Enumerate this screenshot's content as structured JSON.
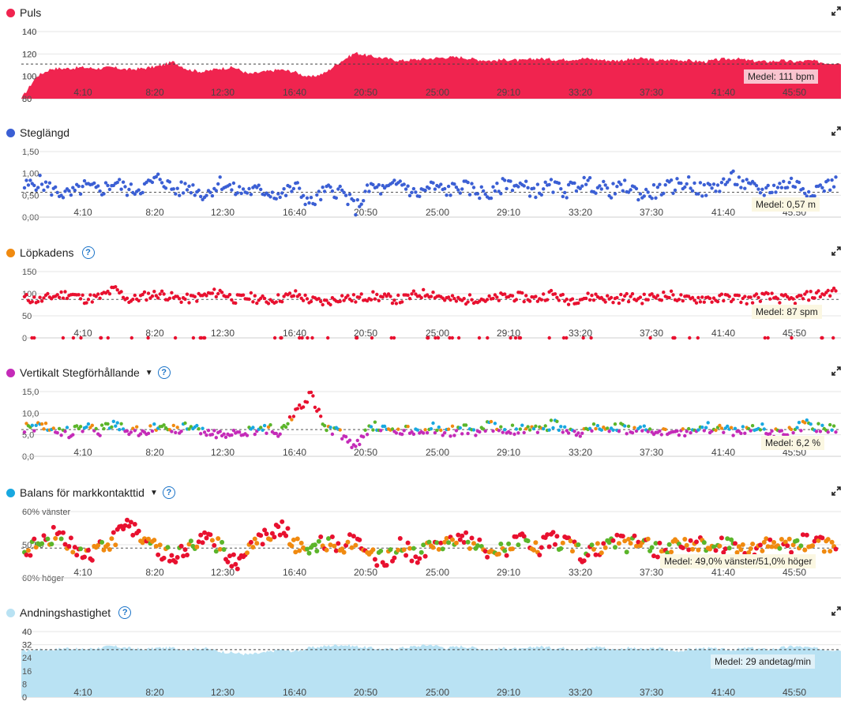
{
  "x_ticks": [
    "4:10",
    "8:20",
    "12:30",
    "16:40",
    "20:50",
    "25:00",
    "29:10",
    "33:20",
    "37:30",
    "41:40",
    "45:50"
  ],
  "colors": {
    "puls": "#f0244f",
    "steg": "#3b5fd4",
    "kadens": "#e8102f",
    "vert_blue": "#18a8e0",
    "vert_green": "#5bb52a",
    "vert_purple": "#c42bb8",
    "vert_orange": "#f08a10",
    "vert_red": "#e8102f",
    "balans_red": "#e8102f",
    "balans_orange": "#f08a10",
    "balans_green": "#5bb52a",
    "andning": "#b9e2f3",
    "help": "#1a73c8"
  },
  "panels": {
    "puls": {
      "title": "Puls",
      "medel": "Medel: 111 bpm",
      "y_ticks": [
        "140",
        "120",
        "100",
        "80"
      ],
      "icon": "expand-icon"
    },
    "steg": {
      "title": "Steglängd",
      "medel": "Medel: 0,57 m",
      "y_ticks": [
        "1,50",
        "1,00",
        "0,50",
        "0,00"
      ],
      "icon": "expand-icon"
    },
    "kadens": {
      "title": "Löpkadens",
      "medel": "Medel: 87 spm",
      "y_ticks": [
        "150",
        "100",
        "50",
        "0"
      ],
      "icon": "expand-icon"
    },
    "vert": {
      "title": "Vertikalt Stegförhållande",
      "medel": "Medel: 6,2 %",
      "y_ticks": [
        "15,0",
        "10,0",
        "5,0",
        "0,0"
      ],
      "icon": "expand-icon"
    },
    "balans": {
      "title": "Balans för markkontakttid",
      "medel": "Medel: 49,0% vänster/51,0% höger",
      "y_ticks": [
        "60% vänster",
        "50,50",
        "60% höger"
      ],
      "icon": "expand-icon"
    },
    "andning": {
      "title": "Andningshastighet",
      "medel": "Medel: 29 andetag/min",
      "y_ticks": [
        "40",
        "32",
        "24",
        "16",
        "8",
        "0"
      ],
      "icon": "expand-icon"
    }
  },
  "chart_data": [
    {
      "type": "area",
      "title": "Puls",
      "ylim": [
        80,
        140
      ],
      "mean": 111,
      "x_ticks": [
        "4:10",
        "8:20",
        "12:30",
        "16:40",
        "20:50",
        "25:00",
        "29:10",
        "33:20",
        "37:30",
        "41:40",
        "45:50"
      ],
      "series": [
        {
          "name": "Puls",
          "values": [
            80,
            100,
            107,
            107,
            108,
            107,
            108,
            106,
            107,
            109,
            113,
            106,
            104,
            107,
            108,
            102,
            104,
            106,
            104,
            99,
            103,
            113,
            121,
            118,
            116,
            114,
            115,
            116,
            117,
            117,
            115,
            114,
            115,
            114,
            116,
            115,
            115,
            116,
            115,
            114,
            115,
            116,
            114,
            115,
            114,
            113,
            115,
            116,
            114,
            113,
            114,
            113,
            114,
            112,
            112
          ]
        }
      ]
    },
    {
      "type": "scatter",
      "title": "Steglängd",
      "ylim": [
        0,
        1.5
      ],
      "mean": 0.57,
      "x_ticks": [
        "4:10",
        "8:20",
        "12:30",
        "16:40",
        "20:50",
        "25:00",
        "29:10",
        "33:20",
        "37:30",
        "41:40",
        "45:50"
      ],
      "series": [
        {
          "name": "Steglängd",
          "values": [
            0.7,
            0.8,
            0.6,
            0.5,
            0.7,
            0.6,
            0.8,
            0.6,
            0.7,
            0.9,
            0.6,
            0.7,
            0.5,
            0.8,
            0.6,
            0.6,
            0.6,
            0.5,
            0.7,
            0.3,
            0.6,
            0.6,
            0.2,
            0.7,
            0.6,
            0.8,
            0.5,
            0.7,
            0.6,
            0.7,
            0.6,
            0.5,
            0.8,
            0.7,
            0.6,
            0.7,
            0.6,
            0.8,
            0.7,
            0.6,
            0.7,
            0.5,
            0.6,
            0.7,
            0.8,
            0.6,
            0.7,
            0.9,
            0.7,
            0.6,
            0.7,
            0.8,
            0.6,
            0.7,
            0.8
          ]
        }
      ]
    },
    {
      "type": "scatter",
      "title": "Löpkadens",
      "ylim": [
        0,
        150
      ],
      "mean": 87,
      "x_ticks": [
        "4:10",
        "8:20",
        "12:30",
        "16:40",
        "20:50",
        "25:00",
        "29:10",
        "33:20",
        "37:30",
        "41:40",
        "45:50"
      ],
      "series": [
        {
          "name": "Löpkadens",
          "values": [
            90,
            85,
            95,
            100,
            88,
            92,
            110,
            85,
            95,
            100,
            90,
            88,
            96,
            104,
            87,
            92,
            84,
            90,
            98,
            85,
            80,
            92,
            88,
            95,
            90,
            86,
            98,
            102,
            88,
            84,
            90,
            86,
            95,
            92,
            88,
            100,
            85,
            90,
            94,
            86,
            92,
            88,
            95,
            96,
            85,
            90,
            88,
            92,
            86,
            94,
            90,
            85,
            95,
            100,
            108
          ]
        }
      ]
    },
    {
      "type": "scatter",
      "title": "Vertikalt Stegförhållande",
      "ylim": [
        0,
        15
      ],
      "mean": 6.2,
      "x_ticks": [
        "4:10",
        "8:20",
        "12:30",
        "16:40",
        "20:50",
        "25:00",
        "29:10",
        "33:20",
        "37:30",
        "41:40",
        "45:50"
      ],
      "series": [
        {
          "name": "Vertikalt Stegförhållande",
          "values": [
            6.5,
            7.0,
            6.0,
            5.5,
            6.8,
            5.8,
            7.5,
            5.5,
            6.0,
            7.2,
            6.4,
            6.8,
            5.6,
            5.2,
            6.2,
            5.8,
            6.6,
            5.4,
            10.5,
            14.5,
            6.0,
            5.5,
            2.0,
            7.0,
            6.2,
            5.8,
            6.0,
            6.8,
            5.5,
            6.4,
            6.0,
            7.2,
            5.8,
            6.6,
            6.0,
            7.5,
            6.2,
            5.6,
            6.8,
            7.0,
            6.4,
            5.8,
            6.2,
            6.0,
            5.4,
            6.5,
            6.8,
            5.8,
            6.0,
            6.6,
            5.4,
            6.2,
            7.6,
            6.0,
            6.2
          ]
        }
      ]
    },
    {
      "type": "scatter",
      "title": "Balans för markkontakttid",
      "ylim": [
        40,
        60
      ],
      "mean": 49.0,
      "x_ticks": [
        "4:10",
        "8:20",
        "12:30",
        "16:40",
        "20:50",
        "25:00",
        "29:10",
        "33:20",
        "37:30",
        "41:40",
        "45:50"
      ],
      "series": [
        {
          "name": "Balans för markkontakttid",
          "values": [
            48,
            51,
            53,
            50,
            46,
            49,
            52,
            56,
            51,
            48,
            47,
            50,
            52,
            49,
            44,
            50,
            53,
            55,
            50,
            48,
            51,
            49,
            52,
            47,
            45,
            50,
            46,
            49,
            51,
            53,
            50,
            47,
            49,
            51,
            48,
            52,
            50,
            47,
            49,
            51,
            50,
            52,
            48,
            49,
            51,
            50,
            49,
            51,
            48,
            50,
            49,
            50,
            51,
            50,
            51
          ]
        }
      ]
    },
    {
      "type": "area",
      "title": "Andningshastighet",
      "ylim": [
        0,
        40
      ],
      "mean": 29,
      "x_ticks": [
        "4:10",
        "8:20",
        "12:30",
        "16:40",
        "20:50",
        "25:00",
        "29:10",
        "33:20",
        "37:30",
        "41:40",
        "45:50"
      ],
      "series": [
        {
          "name": "Andningshastighet",
          "values": [
            28,
            29,
            29,
            30,
            29,
            30,
            31,
            30,
            29,
            30,
            30,
            29,
            30,
            28,
            27,
            26,
            27,
            29,
            28,
            30,
            31,
            32,
            31,
            30,
            29,
            30,
            31,
            32,
            30,
            31,
            30,
            29,
            30,
            29,
            31,
            30,
            30,
            29,
            31,
            29,
            30,
            29,
            30,
            28,
            29,
            30,
            29,
            29,
            30,
            29,
            30,
            31,
            30,
            29,
            29
          ]
        }
      ]
    }
  ]
}
